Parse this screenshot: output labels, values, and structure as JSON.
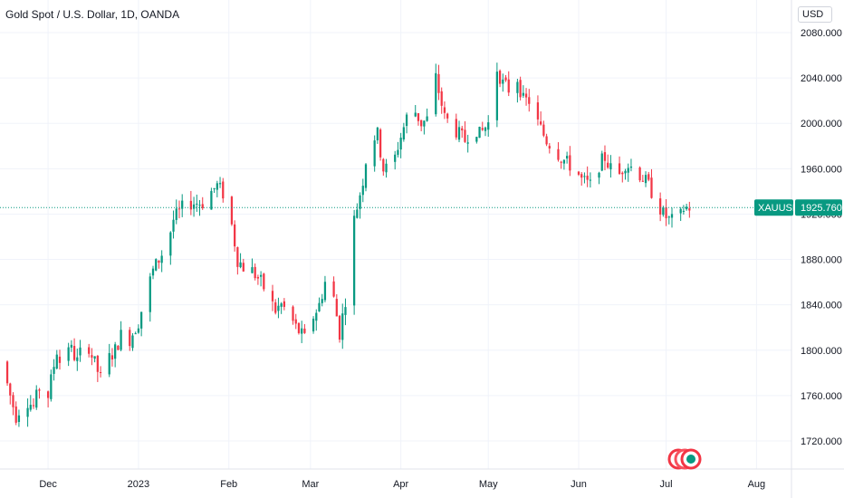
{
  "header": {
    "title": "Gold Spot / U.S. Dollar, 1D, OANDA",
    "currency": "USD"
  },
  "price_tag": {
    "symbol": "XAUUSD",
    "price": "1925.760",
    "color": "#089981"
  },
  "colors": {
    "up": "#089981",
    "down": "#f23645",
    "grid": "#f0f3fa",
    "price_line": "#089981"
  },
  "logo": {
    "icon": "tradingview-logo-icon"
  },
  "chart_data": {
    "type": "candlestick",
    "title": "Gold Spot / U.S. Dollar, 1D, OANDA",
    "ylim": [
      1700,
      2100
    ],
    "y_ticks": [
      "2080.000",
      "2040.000",
      "2000.000",
      "1960.000",
      "1920.000",
      "1880.000",
      "1840.000",
      "1800.000",
      "1760.000",
      "1720.000"
    ],
    "y_tick_values": [
      2080,
      2040,
      2000,
      1960,
      1920,
      1880,
      1840,
      1800,
      1760,
      1720
    ],
    "x_ticks": [
      "Dec",
      "2023",
      "Feb",
      "Mar",
      "Apr",
      "May",
      "Jun",
      "Jul",
      "Aug"
    ],
    "x_tick_days": [
      0,
      31,
      62,
      90,
      121,
      151,
      182,
      212,
      243
    ],
    "x_range_days": [
      -16.5,
      255
    ],
    "grid": true,
    "last_price": 1925.76,
    "ohlc_points": [
      [
        -16,
        1790
      ],
      [
        -13,
        1760
      ],
      [
        -11,
        1742
      ],
      [
        -8,
        1758
      ],
      [
        -5,
        1750
      ],
      [
        -2,
        1775
      ],
      [
        0,
        1760
      ],
      [
        3,
        1800
      ],
      [
        5,
        1780
      ],
      [
        7,
        1805
      ],
      [
        10,
        1790
      ],
      [
        13,
        1812
      ],
      [
        15,
        1795
      ],
      [
        18,
        1775
      ],
      [
        20,
        1790
      ],
      [
        23,
        1800
      ],
      [
        26,
        1820
      ],
      [
        28,
        1810
      ],
      [
        31,
        1825
      ],
      [
        33,
        1845
      ],
      [
        36,
        1870
      ],
      [
        38,
        1880
      ],
      [
        41,
        1895
      ],
      [
        43,
        1915
      ],
      [
        46,
        1925
      ],
      [
        48,
        1930
      ],
      [
        51,
        1930
      ],
      [
        53,
        1930
      ],
      [
        56,
        1940
      ],
      [
        58,
        1945
      ],
      [
        61,
        1935
      ],
      [
        63,
        1910
      ],
      [
        65,
        1880
      ],
      [
        68,
        1870
      ],
      [
        70,
        1870
      ],
      [
        73,
        1860
      ],
      [
        75,
        1850
      ],
      [
        78,
        1835
      ],
      [
        80,
        1840
      ],
      [
        83,
        1830
      ],
      [
        85,
        1820
      ],
      [
        88,
        1810
      ],
      [
        90,
        1825
      ],
      [
        93,
        1840
      ],
      [
        95,
        1860
      ],
      [
        98,
        1845
      ],
      [
        100,
        1815
      ],
      [
        103,
        1860
      ],
      [
        105,
        1915
      ],
      [
        108,
        1950
      ],
      [
        110,
        1985
      ],
      [
        113,
        1990
      ],
      [
        115,
        1960
      ],
      [
        118,
        1960
      ],
      [
        120,
        1980
      ],
      [
        123,
        2005
      ],
      [
        125,
        2015
      ],
      [
        128,
        2000
      ],
      [
        131,
        2005
      ],
      [
        133,
        2040
      ],
      [
        136,
        2005
      ],
      [
        138,
        2000
      ],
      [
        141,
        1990
      ],
      [
        143,
        1985
      ],
      [
        146,
        2000
      ],
      [
        148,
        1990
      ],
      [
        151,
        2000
      ],
      [
        153,
        2055
      ],
      [
        156,
        2035
      ],
      [
        158,
        2030
      ],
      [
        161,
        2040
      ],
      [
        163,
        2020
      ],
      [
        166,
        2020
      ],
      [
        168,
        2000
      ],
      [
        171,
        1985
      ],
      [
        173,
        1980
      ],
      [
        176,
        1970
      ],
      [
        178,
        1965
      ],
      [
        181,
        1960
      ],
      [
        183,
        1950
      ],
      [
        186,
        1945
      ],
      [
        188,
        1960
      ],
      [
        191,
        1970
      ],
      [
        193,
        1960
      ],
      [
        196,
        1955
      ],
      [
        198,
        1965
      ],
      [
        201,
        1960
      ],
      [
        203,
        1955
      ],
      [
        206,
        1945
      ],
      [
        208,
        1935
      ],
      [
        211,
        1920
      ],
      [
        213,
        1915
      ],
      [
        216,
        1912
      ],
      [
        218,
        1925
      ],
      [
        220,
        1926
      ]
    ]
  }
}
